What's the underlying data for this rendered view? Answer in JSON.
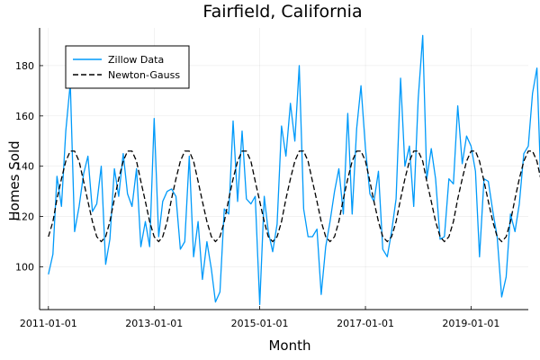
{
  "chart_data": {
    "type": "line",
    "title": "Fairfield, California",
    "xlabel": "Month",
    "ylabel": "Homes Sold",
    "x_ticks": [
      "2011-01-01",
      "2013-01-01",
      "2015-01-01",
      "2017-01-01",
      "2019-01-01"
    ],
    "y_ticks": [
      100,
      120,
      140,
      160,
      180
    ],
    "xlim": [
      "2010-11-01",
      "2020-02-01"
    ],
    "ylim": [
      83,
      195
    ],
    "grid": true,
    "legend_position": "top-left",
    "series": [
      {
        "name": "Zillow Data",
        "style": "solid",
        "color": "#009AFA",
        "x_start": "2011-01-01",
        "values": [
          97,
          105,
          136,
          124,
          154,
          173,
          114,
          124,
          137,
          144,
          122,
          125,
          140,
          101,
          111,
          139,
          128,
          145,
          129,
          124,
          139,
          108,
          118,
          108,
          159,
          112,
          126,
          130,
          131,
          128,
          107,
          110,
          144,
          104,
          118,
          95,
          110,
          99,
          86,
          90,
          123,
          121,
          158,
          126,
          154,
          127,
          125,
          128,
          85,
          128,
          114,
          106,
          117,
          156,
          144,
          165,
          150,
          180,
          123,
          112,
          112,
          115,
          89,
          108,
          118,
          130,
          139,
          121,
          161,
          121,
          155,
          172,
          147,
          129,
          126,
          138,
          107,
          104,
          114,
          127,
          175,
          140,
          148,
          124,
          167,
          192,
          135,
          147,
          135,
          111,
          112,
          135,
          133,
          164,
          141,
          152,
          148,
          138,
          104,
          135,
          134,
          122,
          112,
          88,
          96,
          121,
          114,
          125,
          145,
          148,
          169,
          179,
          127,
          139,
          107,
          107,
          101
        ]
      },
      {
        "name": "Newton-Gauss",
        "style": "dashed",
        "color": "#000000",
        "x_start": "2011-01-01",
        "values": [
          112,
          118,
          127,
          135,
          142,
          146,
          146,
          142,
          134,
          126,
          118,
          112,
          110,
          112,
          118,
          127,
          135,
          142,
          146,
          146,
          142,
          134,
          126,
          118,
          112,
          110,
          112,
          118,
          127,
          135,
          142,
          146,
          146,
          142,
          134,
          126,
          118,
          112,
          110,
          112,
          118,
          127,
          135,
          142,
          146,
          146,
          142,
          134,
          126,
          118,
          112,
          110,
          112,
          118,
          127,
          135,
          142,
          146,
          146,
          142,
          134,
          126,
          118,
          112,
          110,
          112,
          118,
          127,
          135,
          142,
          146,
          146,
          142,
          134,
          126,
          118,
          112,
          110,
          112,
          118,
          127,
          135,
          142,
          146,
          146,
          142,
          134,
          126,
          118,
          112,
          110,
          112,
          118,
          127,
          135,
          142,
          146,
          146,
          142,
          134,
          126,
          118,
          112,
          110,
          112,
          118,
          127,
          135,
          142,
          146,
          146,
          142,
          134,
          126,
          118,
          112,
          110
        ]
      }
    ]
  }
}
